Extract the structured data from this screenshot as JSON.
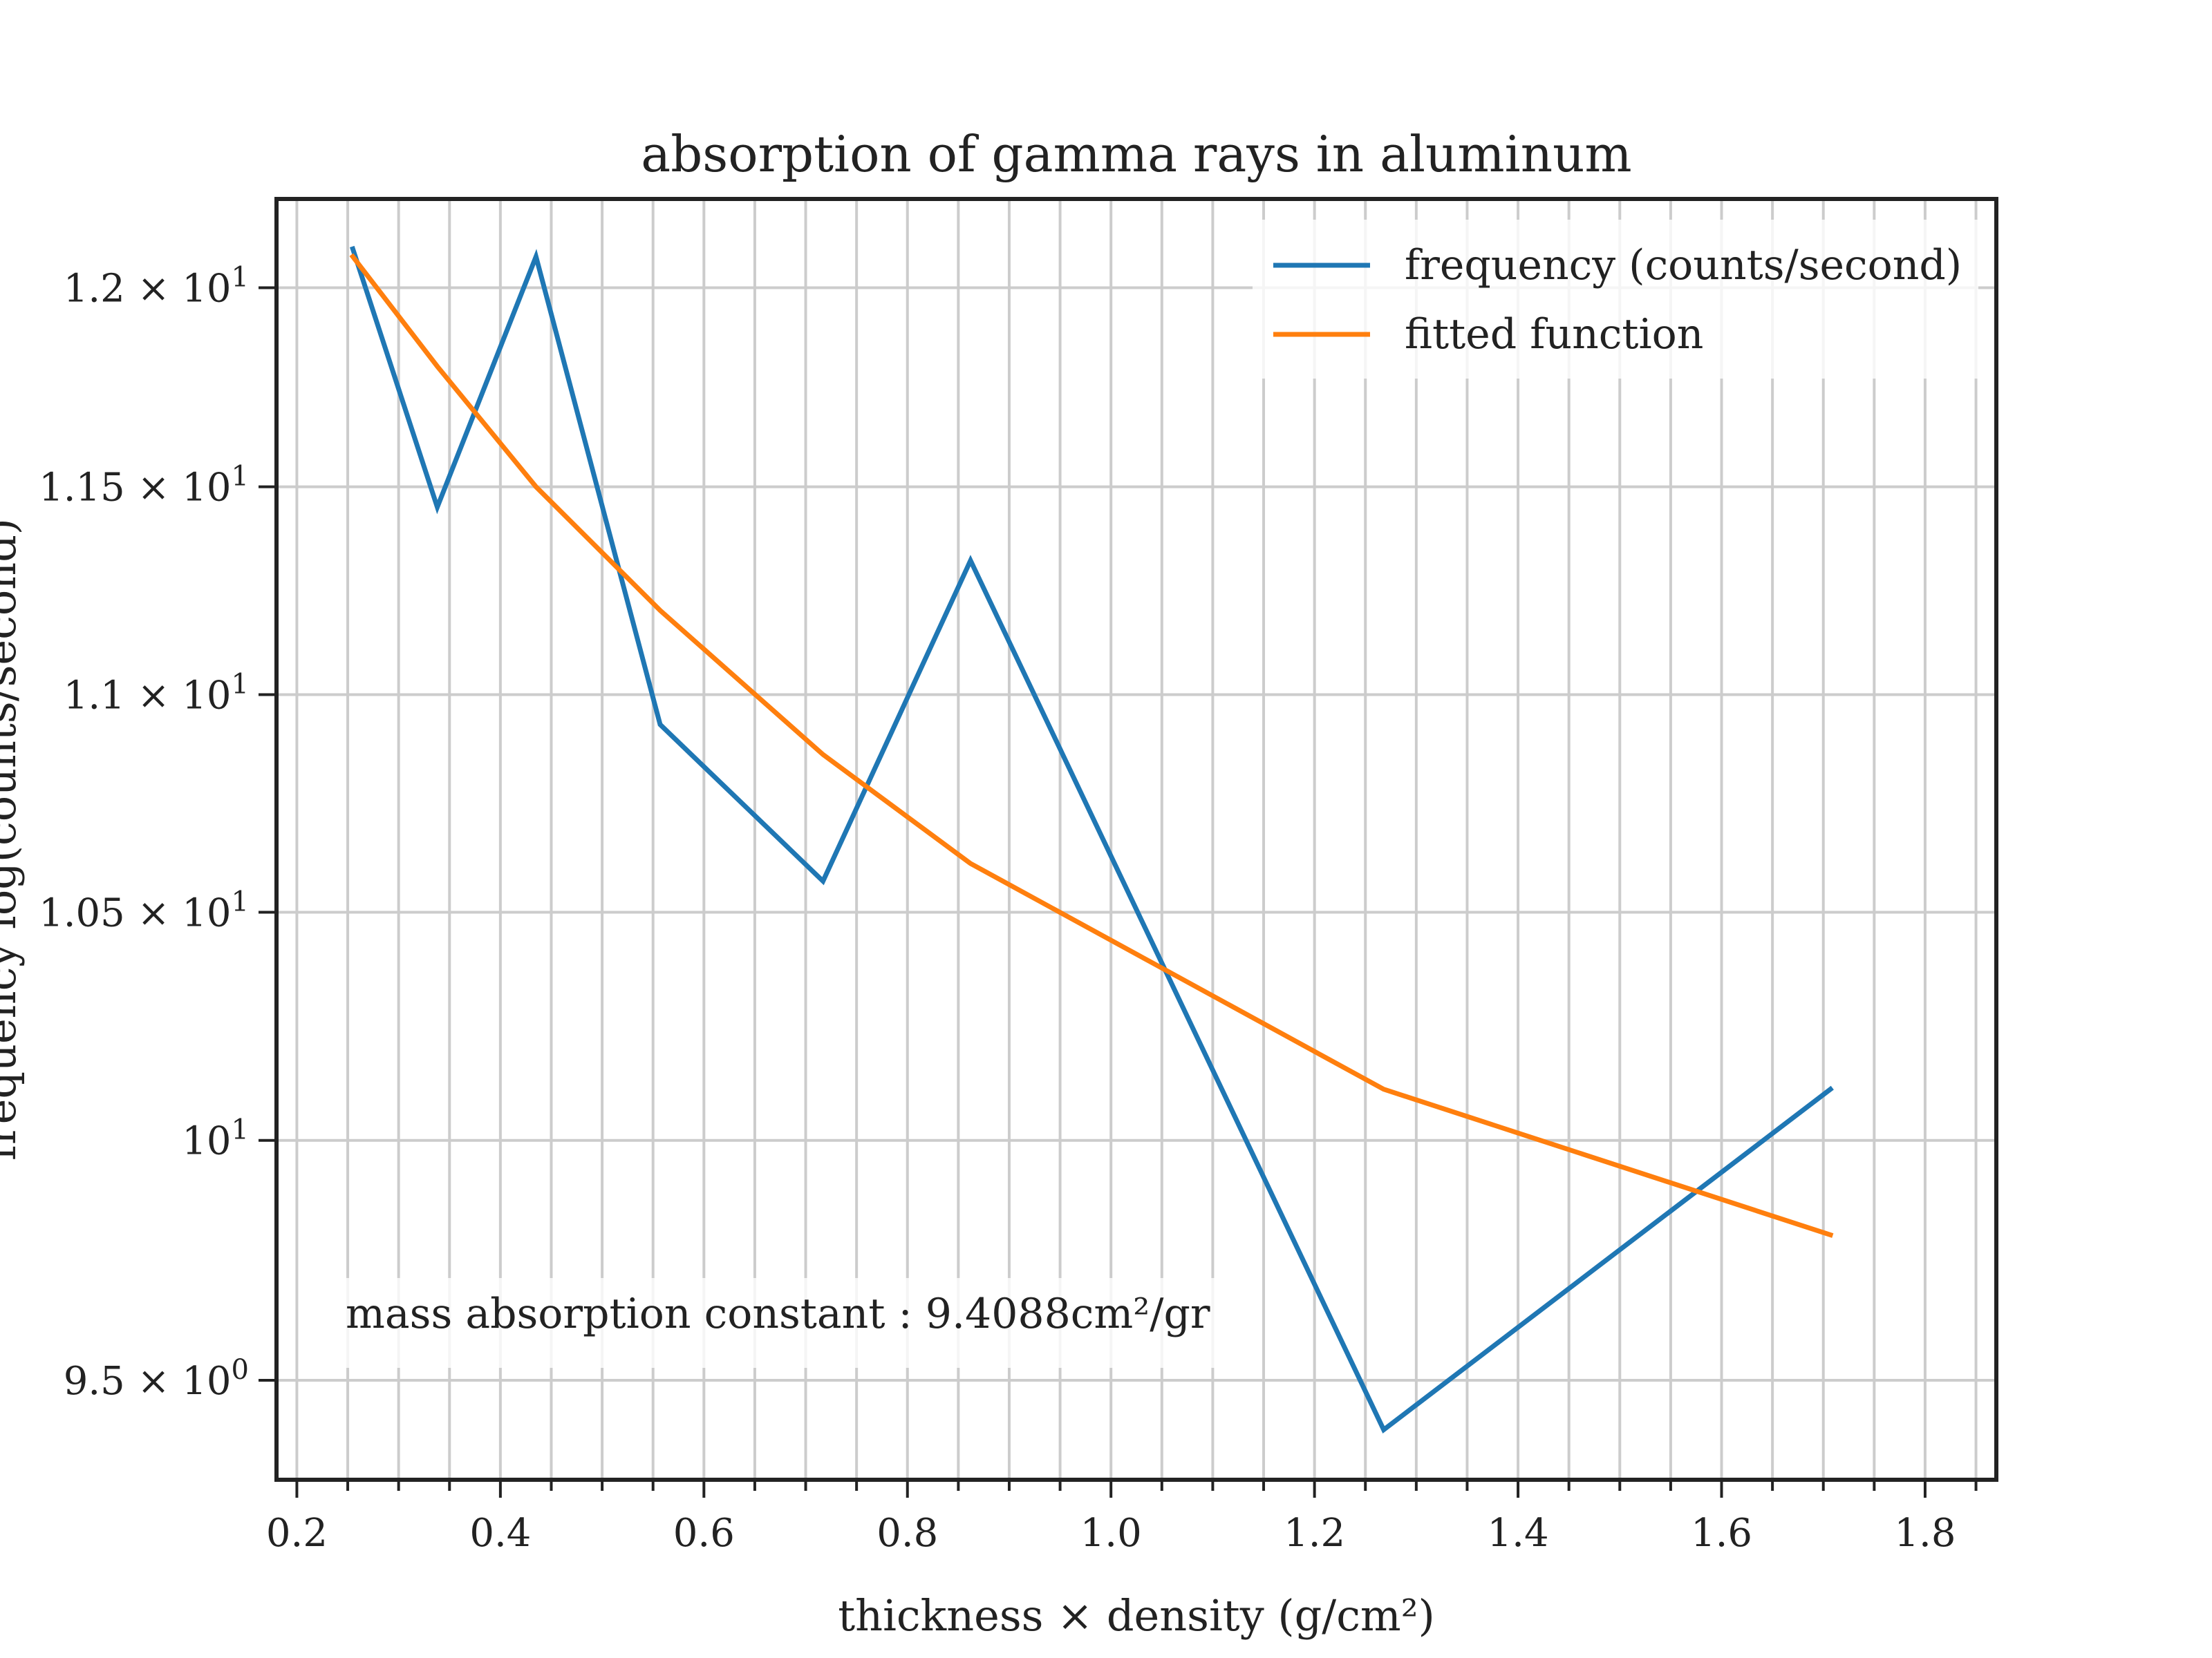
{
  "chart_data": {
    "type": "line",
    "title": "absorption of gamma rays in aluminum",
    "xlabel": "thickness × density (g/cm²)",
    "ylabel": "frequency log(counts/second)",
    "xlim": [
      0.18,
      1.87
    ],
    "ylim": [
      9.3,
      12.23
    ],
    "yscale": "log",
    "grid": true,
    "legend_position": "top-right",
    "annotation": "mass absorption constant : 9.4088cm²/gr",
    "x_ticks": [
      0.2,
      0.4,
      0.6,
      0.8,
      1.0,
      1.2,
      1.4,
      1.6,
      1.8
    ],
    "x_tick_labels": [
      "0.2",
      "0.4",
      "0.6",
      "0.8",
      "1.0",
      "1.2",
      "1.4",
      "1.6",
      "1.8"
    ],
    "x_minor_ticks": [
      0.25,
      0.3,
      0.35,
      0.45,
      0.5,
      0.55,
      0.65,
      0.7,
      0.75,
      0.85,
      0.9,
      0.95,
      1.05,
      1.1,
      1.15,
      1.25,
      1.3,
      1.35,
      1.45,
      1.5,
      1.55,
      1.65,
      1.7,
      1.75,
      1.85
    ],
    "y_ticks": [
      9.5,
      10.0,
      10.5,
      11.0,
      11.5,
      12.0
    ],
    "y_tick_labels": [
      {
        "base": "9.5 × 10",
        "exp": "0"
      },
      {
        "base": "10",
        "exp": "1"
      },
      {
        "base": "1.05 × 10",
        "exp": "1"
      },
      {
        "base": "1.1 × 10",
        "exp": "1"
      },
      {
        "base": "1.15 × 10",
        "exp": "1"
      },
      {
        "base": "1.2 × 10",
        "exp": "1"
      }
    ],
    "series": [
      {
        "name": "frequency (counts/second)",
        "color": "#1f77b4",
        "x": [
          0.255,
          0.338,
          0.435,
          0.557,
          0.717,
          0.862,
          1.268,
          1.707
        ],
        "y": [
          12.1,
          11.45,
          12.08,
          10.93,
          10.57,
          11.32,
          9.4,
          10.11
        ]
      },
      {
        "name": "fitted function",
        "color": "#ff7f0e",
        "x": [
          0.255,
          0.338,
          0.435,
          0.557,
          0.717,
          0.862,
          1.268,
          1.707
        ],
        "y": [
          12.08,
          11.8,
          11.5,
          11.2,
          10.86,
          10.61,
          10.11,
          9.8
        ]
      }
    ]
  }
}
